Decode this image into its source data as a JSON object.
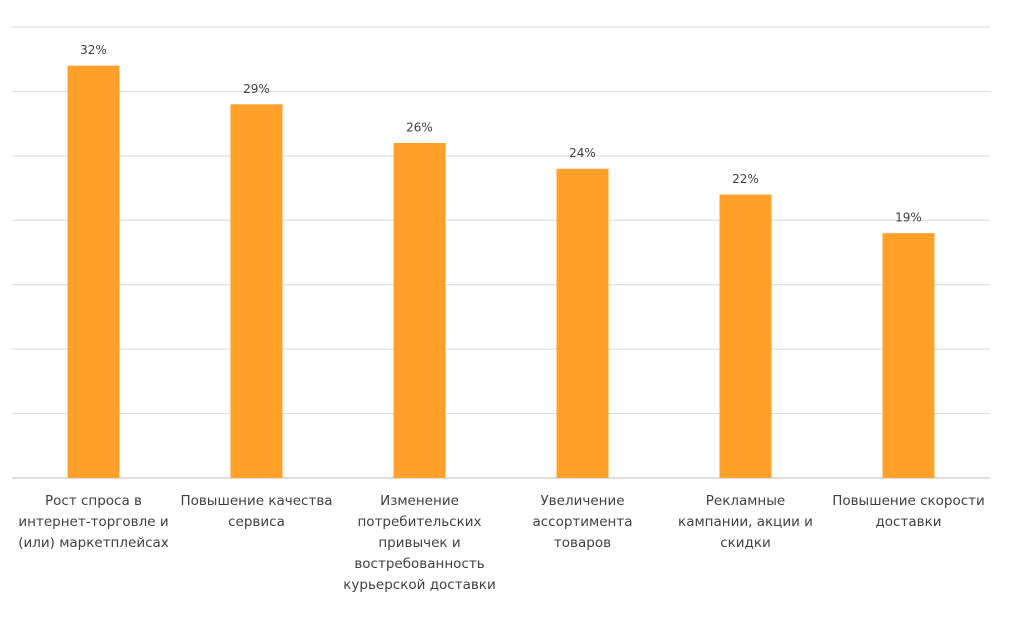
{
  "chart_data": {
    "type": "bar",
    "categories": [
      "Рост спроса в интернет-торговле и (или) маркетплейсах",
      "Повышение качества сервиса",
      "Изменение потребительских привычек и востребованность курьерской доставки",
      "Увеличение ассортимента товаров",
      "Рекламные кампании, акции и скидки",
      "Повышение скорости доставки"
    ],
    "values": [
      32,
      29,
      26,
      24,
      22,
      19
    ],
    "value_labels": [
      "32%",
      "29%",
      "26%",
      "24%",
      "22%",
      "19%"
    ],
    "color": "#ffa02a",
    "ylim": [
      0,
      35
    ],
    "yticks": [
      0,
      5,
      10,
      15,
      20,
      25,
      30,
      35
    ],
    "grid": true
  }
}
